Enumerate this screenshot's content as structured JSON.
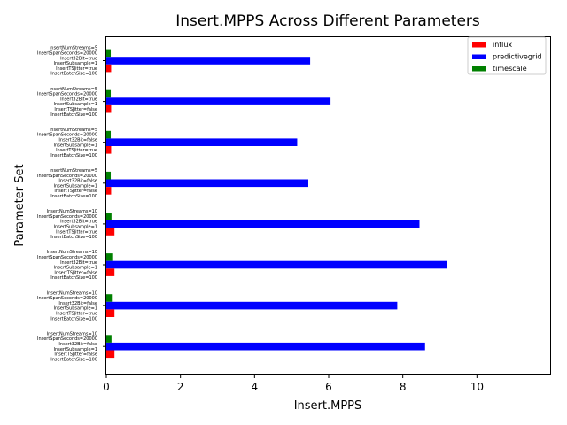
{
  "chart_data": {
    "type": "bar",
    "orientation": "horizontal",
    "title": "Insert.MPPS Across Different Parameters",
    "xlabel": "Insert.MPPS",
    "ylabel": "Parameter Set",
    "xlim": [
      0,
      12
    ],
    "xticks": [
      "0",
      "2",
      "4",
      "6",
      "8",
      "10"
    ],
    "grid": false,
    "legend_position": "top-right",
    "categories": [
      [
        "InsertNumStreams=5",
        "InsertSpanSeconds=20000",
        "Insert32Bit=true",
        "InsertSubsample=1",
        "InsertTSJitter=true",
        "InsertBatchSize=100"
      ],
      [
        "InsertNumStreams=5",
        "InsertSpanSeconds=20000",
        "Insert32Bit=true",
        "InsertSubsample=1",
        "InsertTSJitter=false",
        "InsertBatchSize=100"
      ],
      [
        "InsertNumStreams=5",
        "InsertSpanSeconds=20000",
        "Insert32Bit=false",
        "InsertSubsample=1",
        "InsertTSJitter=true",
        "InsertBatchSize=100"
      ],
      [
        "InsertNumStreams=5",
        "InsertSpanSeconds=20000",
        "Insert32Bit=false",
        "InsertSubsample=1",
        "InsertTSJitter=false",
        "InsertBatchSize=100"
      ],
      [
        "InsertNumStreams=10",
        "InsertSpanSeconds=20000",
        "Insert32Bit=true",
        "InsertSubsample=1",
        "InsertTSJitter=true",
        "InsertBatchSize=100"
      ],
      [
        "InsertNumStreams=10",
        "InsertSpanSeconds=20000",
        "Insert32Bit=true",
        "InsertSubsample=1",
        "InsertTSJitter=false",
        "InsertBatchSize=100"
      ],
      [
        "InsertNumStreams=10",
        "InsertSpanSeconds=20000",
        "Insert32Bit=false",
        "InsertSubsample=1",
        "InsertTSJitter=true",
        "InsertBatchSize=100"
      ],
      [
        "InsertNumStreams=10",
        "InsertSpanSeconds=20000",
        "Insert32Bit=false",
        "InsertSubsample=1",
        "InsertTSJitter=false",
        "InsertBatchSize=100"
      ]
    ],
    "series": [
      {
        "name": "influx",
        "color": "#ff0000",
        "values": [
          0.13,
          0.13,
          0.13,
          0.13,
          0.22,
          0.22,
          0.22,
          0.22
        ]
      },
      {
        "name": "predictivegrid",
        "color": "#0000ff",
        "values": [
          5.5,
          6.05,
          5.15,
          5.45,
          8.45,
          9.2,
          7.85,
          8.6
        ]
      },
      {
        "name": "timescale",
        "color": "#008000",
        "values": [
          0.12,
          0.12,
          0.12,
          0.12,
          0.14,
          0.16,
          0.15,
          0.14
        ]
      }
    ]
  }
}
